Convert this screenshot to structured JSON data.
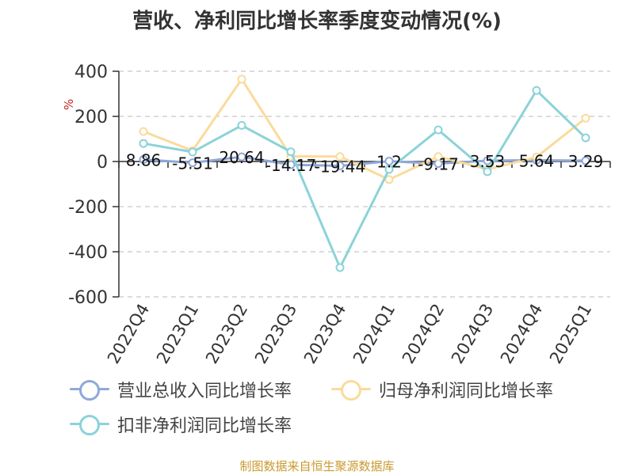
{
  "chart_data": {
    "type": "line",
    "title": "营收、净利同比增长率季度变动情况(%)",
    "ylabel": "%",
    "ylim": [
      -600,
      400
    ],
    "yticks": [
      400,
      200,
      0,
      -200,
      -400,
      -600
    ],
    "grid": true,
    "legend_position": "bottom",
    "categories": [
      "2022Q4",
      "2023Q1",
      "2023Q2",
      "2023Q3",
      "2023Q4",
      "2024Q1",
      "2024Q2",
      "2024Q3",
      "2024Q4",
      "2025Q1"
    ],
    "series": [
      {
        "name": "营业总收入同比增长率",
        "color": "#8fa8d8",
        "values": [
          8.86,
          -5.51,
          20.64,
          -14.17,
          -19.44,
          1.2,
          -9.17,
          3.53,
          5.64,
          3.29
        ],
        "labels": [
          "8.86",
          "-5.51",
          "20.64",
          "-14.17",
          "-19.44",
          "1.2",
          "-9.17",
          "3.53",
          "5.64",
          "3.29"
        ]
      },
      {
        "name": "归母净利润同比增长率",
        "color": "#fadb9c",
        "values": [
          133,
          48,
          365,
          23,
          22,
          -80,
          22,
          -35,
          20,
          192
        ]
      },
      {
        "name": "扣非净利润同比增长率",
        "color": "#8bd3d9",
        "values": [
          80,
          42,
          160,
          43,
          -470,
          -35,
          140,
          -45,
          315,
          105
        ]
      }
    ]
  },
  "source_note": "制图数据来自恒生聚源数据库"
}
